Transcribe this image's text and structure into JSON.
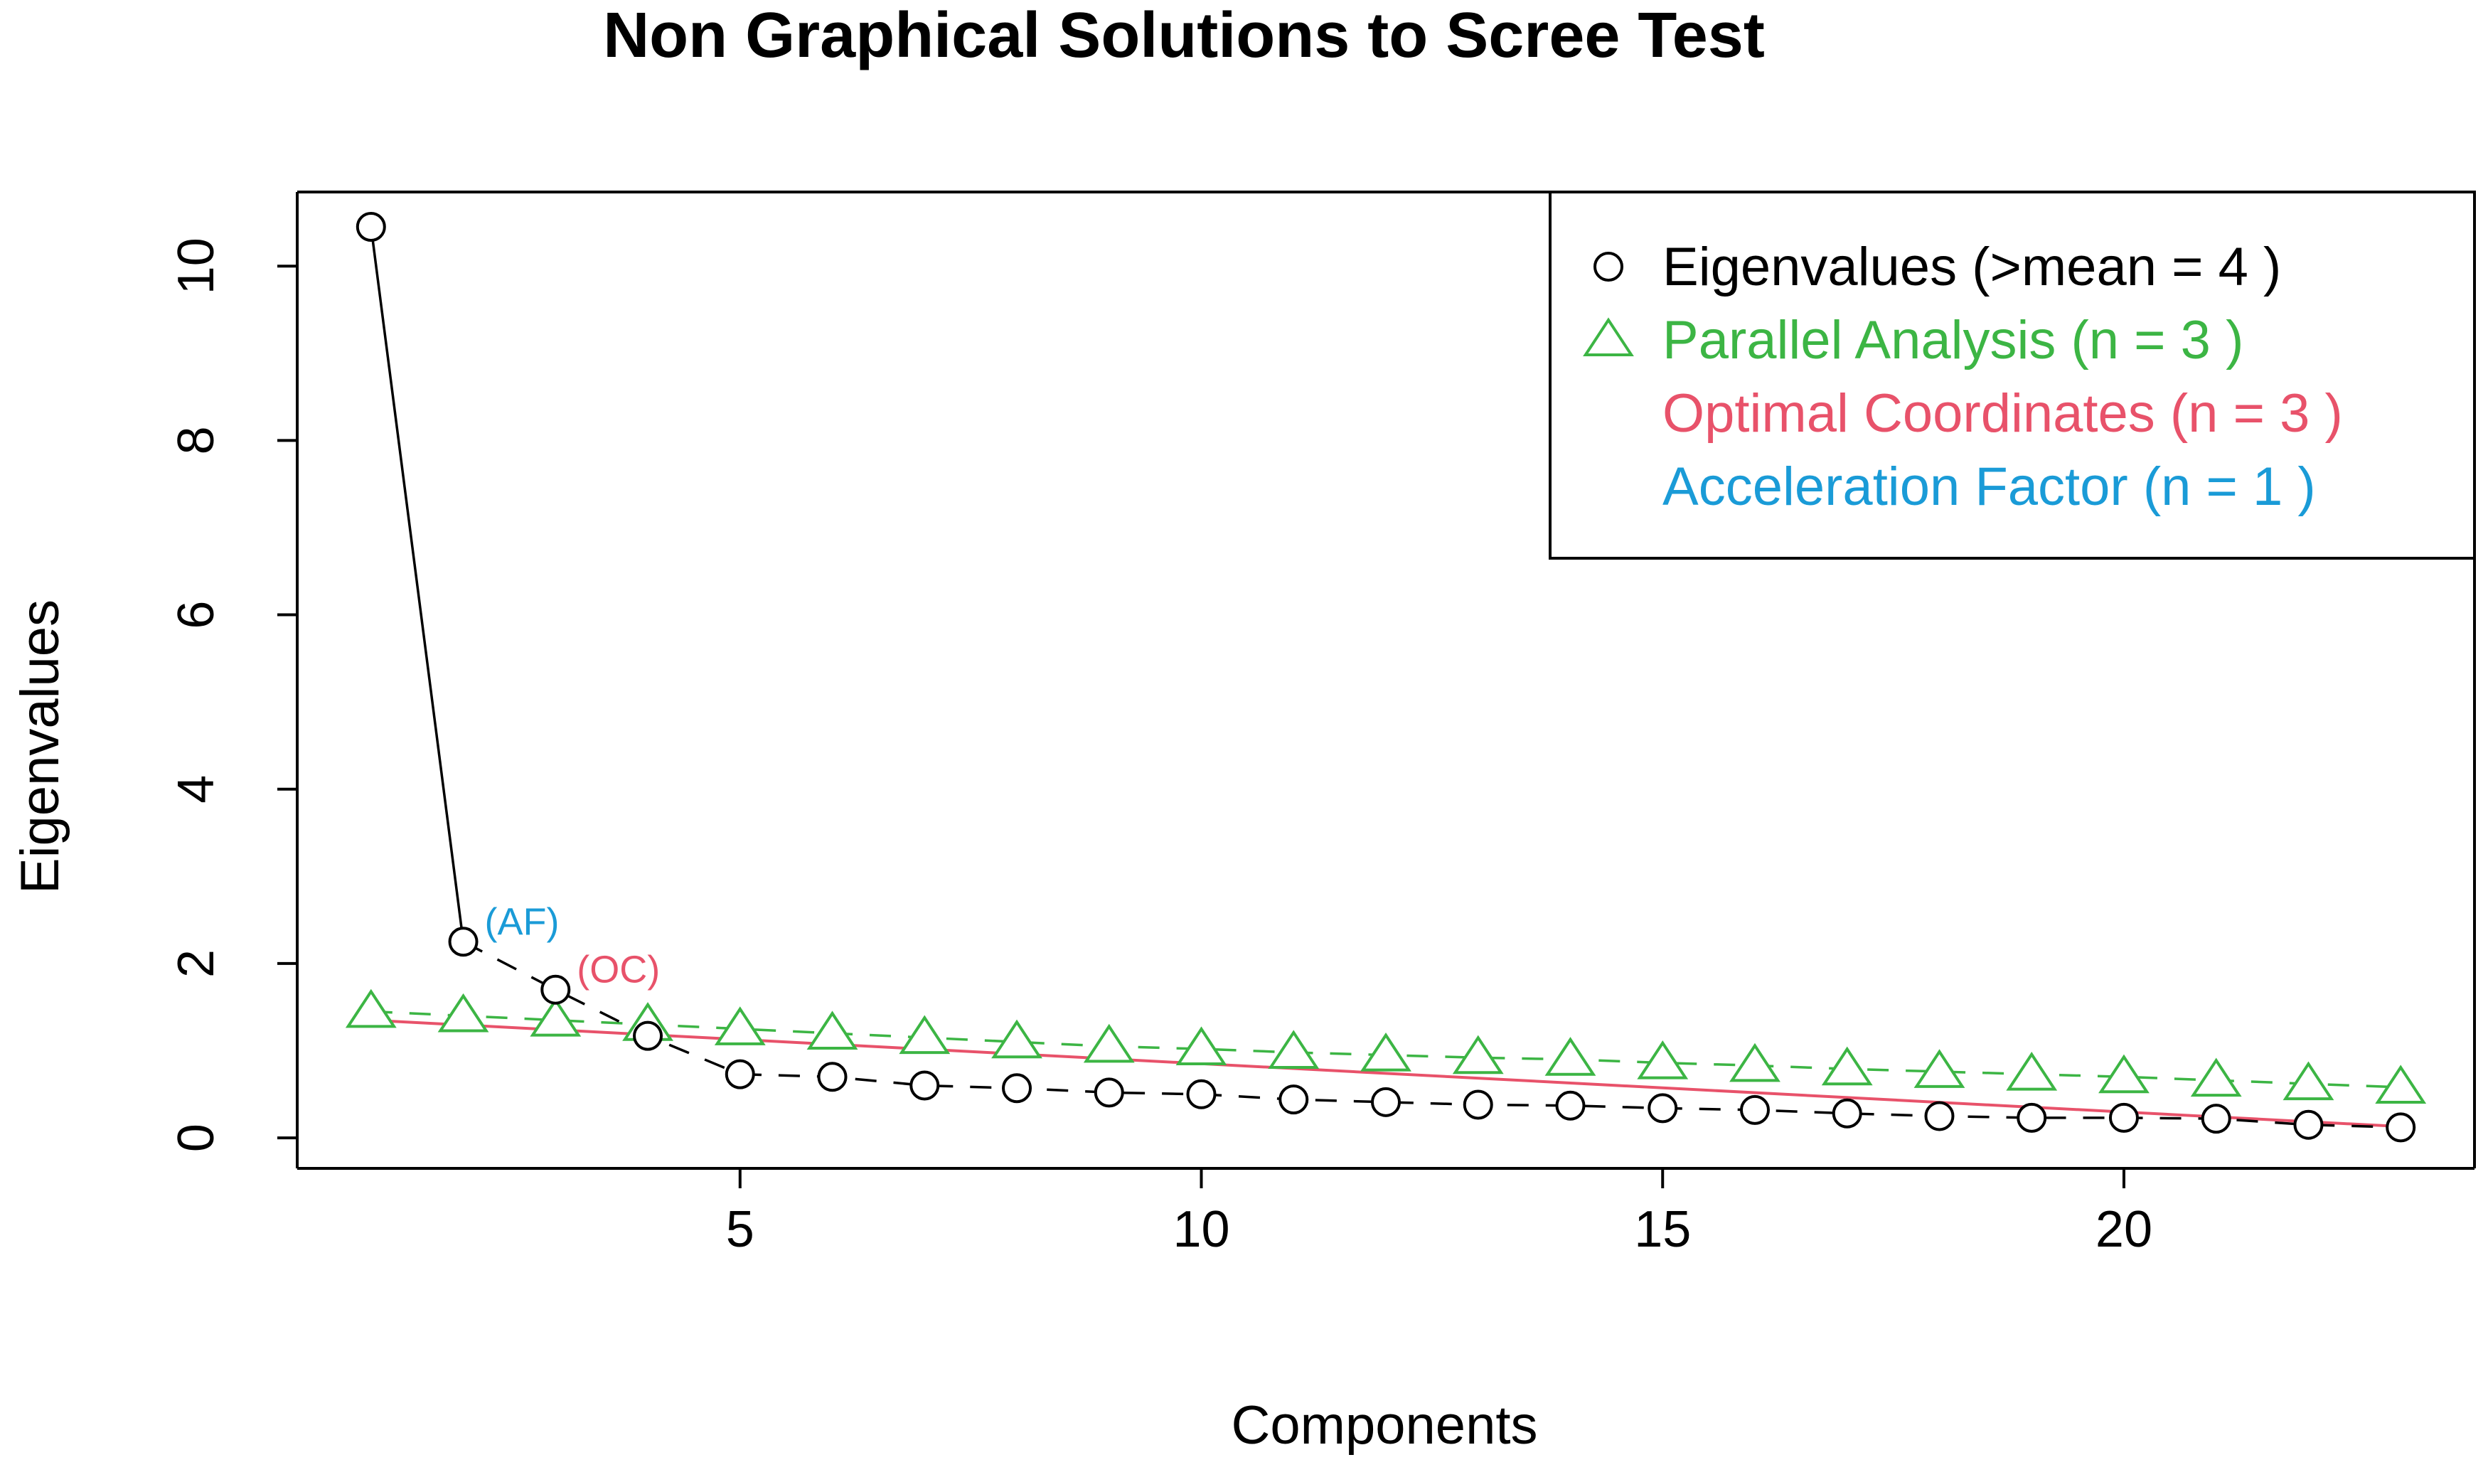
{
  "colors": {
    "eigen": "#000000",
    "parallel": "#3cb544",
    "optimal": "#e8526a",
    "accel": "#1a9bd7",
    "axis": "#000000",
    "background": "#ffffff"
  },
  "chart_data": {
    "type": "scatter",
    "title": "Non Graphical Solutions to Scree Test",
    "xlabel": "Components",
    "ylabel": "Eigenvalues",
    "xlim": [
      0.2,
      23.8
    ],
    "ylim": [
      -0.35,
      10.85
    ],
    "xticks": [
      5,
      10,
      15,
      20
    ],
    "yticks": [
      0,
      2,
      4,
      6,
      8,
      10
    ],
    "grid": false,
    "legend_position": "top-right",
    "legend": [
      {
        "label": "Eigenvalues (>mean  =  4 )",
        "color": "#000000",
        "marker": "circle"
      },
      {
        "label": "Parallel Analysis (n =  3 )",
        "color": "#3cb544",
        "marker": "triangle"
      },
      {
        "label": "Optimal Coordinates (n =  3 )",
        "color": "#e8526a",
        "marker": "none"
      },
      {
        "label": "Acceleration Factor (n =  1 )",
        "color": "#1a9bd7",
        "marker": "none"
      }
    ],
    "x": [
      1,
      2,
      3,
      4,
      5,
      6,
      7,
      8,
      9,
      10,
      11,
      12,
      13,
      14,
      15,
      16,
      17,
      18,
      19,
      20,
      21,
      22,
      23
    ],
    "series": [
      {
        "name": "Eigenvalues (>mean  =  4 )",
        "marker": "circle",
        "values": [
          10.45,
          2.25,
          1.7,
          1.17,
          0.73,
          0.7,
          0.6,
          0.57,
          0.52,
          0.5,
          0.44,
          0.41,
          0.38,
          0.37,
          0.34,
          0.32,
          0.28,
          0.25,
          0.23,
          0.23,
          0.22,
          0.15,
          0.12
        ]
      },
      {
        "name": "Parallel Analysis (n =  3 )",
        "marker": "triangle",
        "values": [
          1.45,
          1.4,
          1.35,
          1.3,
          1.25,
          1.2,
          1.15,
          1.1,
          1.05,
          1.02,
          0.98,
          0.95,
          0.92,
          0.9,
          0.86,
          0.83,
          0.79,
          0.76,
          0.73,
          0.7,
          0.66,
          0.62,
          0.58
        ]
      },
      {
        "name": "Optimal Coordinates (n =  3 )",
        "marker": "none",
        "line_from": [
          1,
          1.35
        ],
        "line_to": [
          23,
          0.13
        ]
      }
    ],
    "annotations": [
      {
        "text": "(AF)",
        "x": 2,
        "y": 2.25,
        "color": "#1a9bd7"
      },
      {
        "text": "(OC)",
        "x": 3,
        "y": 1.7,
        "color": "#e8526a"
      }
    ]
  }
}
